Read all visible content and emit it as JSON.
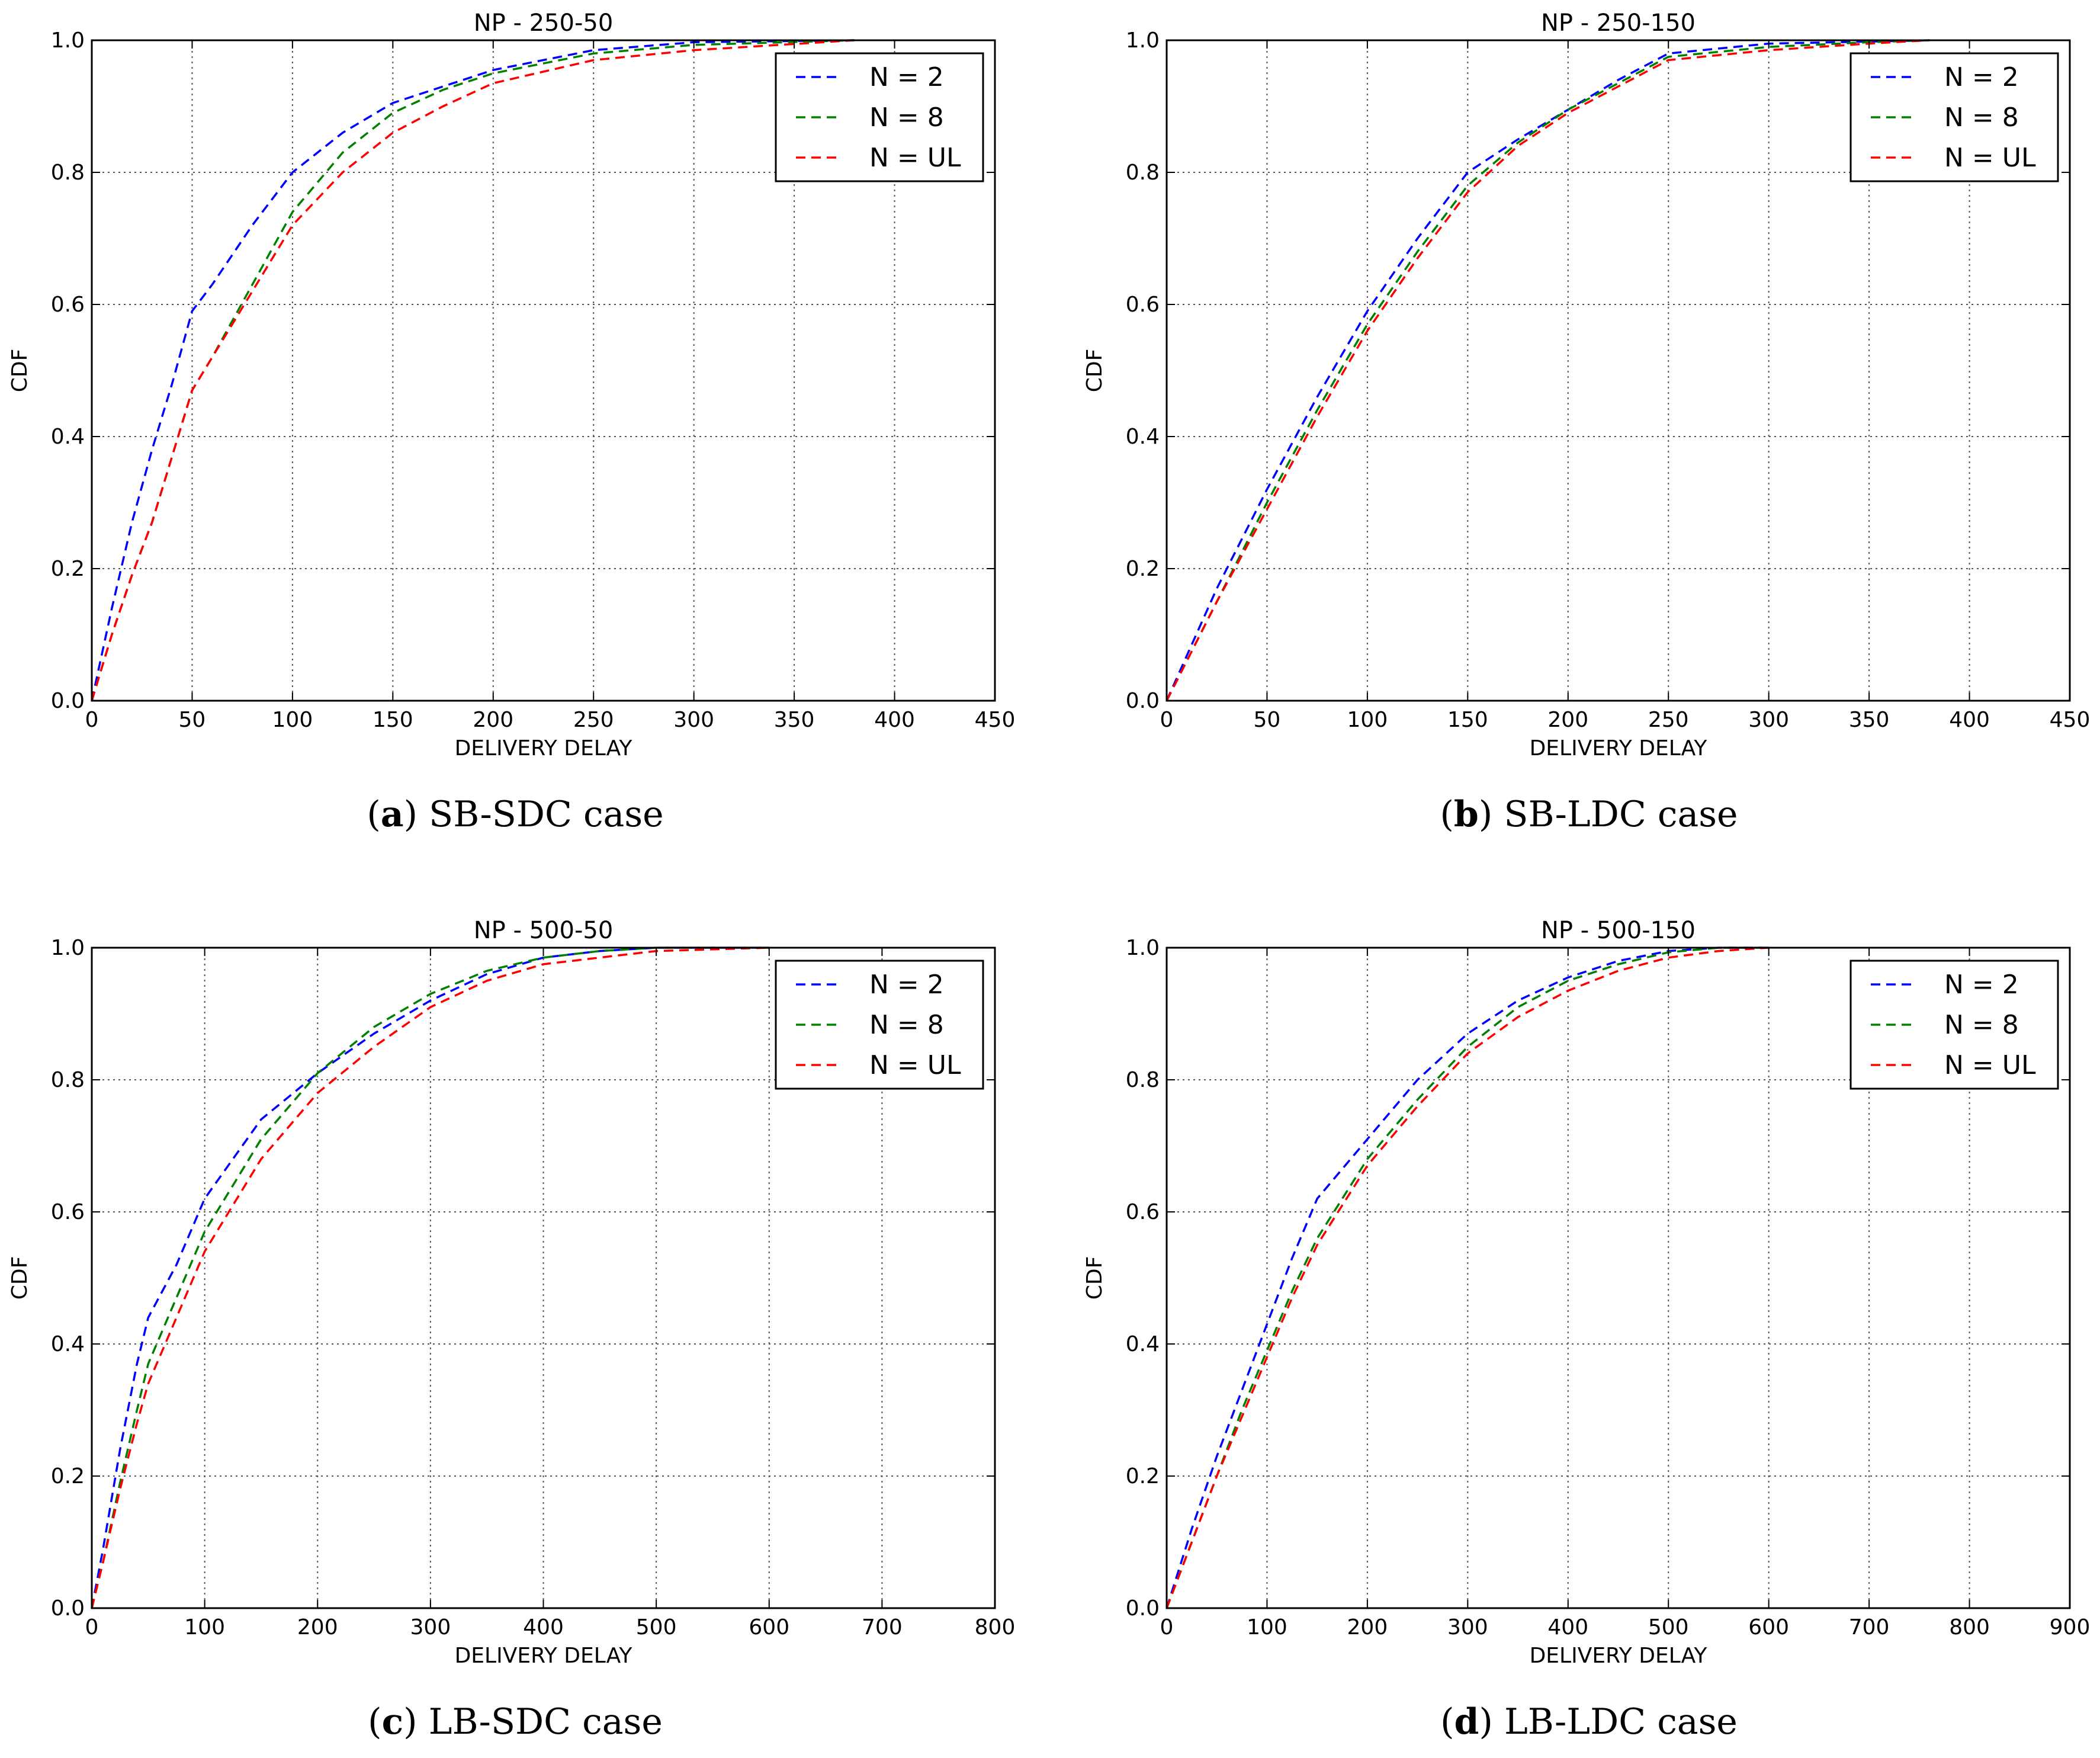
{
  "figure": {
    "captions": [
      {
        "letter": "a",
        "paren_open": "(",
        "paren_close": ")",
        "text": " SB-SDC case"
      },
      {
        "letter": "b",
        "paren_open": "(",
        "paren_close": ")",
        "text": " SB-LDC case"
      },
      {
        "letter": "c",
        "paren_open": "(",
        "paren_close": ")",
        "text": " LB-SDC case"
      },
      {
        "letter": "d",
        "paren_open": "(",
        "paren_close": ")",
        "text": " LB-LDC case"
      }
    ]
  },
  "colors": {
    "n2": "#0000ff",
    "n8": "#008000",
    "nul": "#ff0000",
    "grid": "#555555"
  },
  "chart_data": [
    {
      "type": "line",
      "title": "NP - 250-50",
      "xlabel": "DELIVERY DELAY",
      "ylabel": "CDF",
      "xlim": [
        0,
        450
      ],
      "ylim": [
        0,
        1.0
      ],
      "xticks": [
        0,
        50,
        100,
        150,
        200,
        250,
        300,
        350,
        400,
        450
      ],
      "xtick_labels": [
        "0",
        "50",
        "100",
        "150",
        "200",
        "250",
        "300",
        "350",
        "400",
        "450"
      ],
      "yticks": [
        0.0,
        0.2,
        0.4,
        0.6,
        0.8,
        1.0
      ],
      "ytick_labels": [
        "0.0",
        "0.2",
        "0.4",
        "0.6",
        "0.8",
        "1.0"
      ],
      "grid": true,
      "legend_position": "top-right",
      "series": [
        {
          "name": "N = 2",
          "color": "#0000ff",
          "x": [
            0,
            5,
            10,
            20,
            30,
            40,
            50,
            60,
            80,
            100,
            125,
            150,
            175,
            200,
            250,
            300,
            380
          ],
          "y": [
            0,
            0.07,
            0.14,
            0.27,
            0.38,
            0.48,
            0.59,
            0.63,
            0.72,
            0.8,
            0.86,
            0.905,
            0.93,
            0.955,
            0.985,
            0.997,
            1.0
          ]
        },
        {
          "name": "N = 8",
          "color": "#008000",
          "x": [
            0,
            5,
            10,
            20,
            30,
            40,
            50,
            60,
            80,
            100,
            125,
            150,
            175,
            200,
            250,
            300,
            380
          ],
          "y": [
            0,
            0.05,
            0.1,
            0.19,
            0.27,
            0.37,
            0.47,
            0.52,
            0.63,
            0.74,
            0.83,
            0.89,
            0.925,
            0.95,
            0.98,
            0.993,
            1.0
          ]
        },
        {
          "name": "N = UL",
          "color": "#ff0000",
          "x": [
            0,
            5,
            10,
            20,
            30,
            40,
            50,
            60,
            80,
            100,
            125,
            150,
            175,
            200,
            250,
            300,
            380
          ],
          "y": [
            0,
            0.05,
            0.1,
            0.19,
            0.27,
            0.37,
            0.47,
            0.52,
            0.62,
            0.72,
            0.8,
            0.86,
            0.9,
            0.935,
            0.97,
            0.985,
            1.0
          ]
        }
      ]
    },
    {
      "type": "line",
      "title": "NP - 250-150",
      "xlabel": "DELIVERY DELAY",
      "ylabel": "CDF",
      "xlim": [
        0,
        450
      ],
      "ylim": [
        0,
        1.0
      ],
      "xticks": [
        0,
        50,
        100,
        150,
        200,
        250,
        300,
        350,
        400,
        450
      ],
      "xtick_labels": [
        "0",
        "50",
        "100",
        "150",
        "200",
        "250",
        "300",
        "350",
        "400",
        "450"
      ],
      "yticks": [
        0.0,
        0.2,
        0.4,
        0.6,
        0.8,
        1.0
      ],
      "ytick_labels": [
        "0.0",
        "0.2",
        "0.4",
        "0.6",
        "0.8",
        "1.0"
      ],
      "grid": true,
      "legend_position": "top-right",
      "series": [
        {
          "name": "N = 2",
          "color": "#0000ff",
          "x": [
            0,
            25,
            50,
            75,
            100,
            125,
            150,
            175,
            200,
            225,
            250,
            300,
            350,
            380
          ],
          "y": [
            0,
            0.17,
            0.32,
            0.46,
            0.59,
            0.7,
            0.8,
            0.85,
            0.895,
            0.94,
            0.98,
            0.995,
            0.998,
            1.0
          ]
        },
        {
          "name": "N = 8",
          "color": "#008000",
          "x": [
            0,
            25,
            50,
            75,
            100,
            125,
            150,
            175,
            200,
            225,
            250,
            300,
            350,
            380
          ],
          "y": [
            0,
            0.15,
            0.3,
            0.44,
            0.57,
            0.68,
            0.78,
            0.845,
            0.895,
            0.935,
            0.975,
            0.99,
            0.997,
            1.0
          ]
        },
        {
          "name": "N = UL",
          "color": "#ff0000",
          "x": [
            0,
            25,
            50,
            75,
            100,
            125,
            150,
            175,
            200,
            225,
            250,
            300,
            350,
            380
          ],
          "y": [
            0,
            0.15,
            0.29,
            0.43,
            0.56,
            0.67,
            0.77,
            0.84,
            0.89,
            0.93,
            0.97,
            0.985,
            0.995,
            1.0
          ]
        }
      ]
    },
    {
      "type": "line",
      "title": "NP - 500-50",
      "xlabel": "DELIVERY DELAY",
      "ylabel": "CDF",
      "xlim": [
        0,
        800
      ],
      "ylim": [
        0,
        1.0
      ],
      "xticks": [
        0,
        100,
        200,
        300,
        400,
        500,
        600,
        700,
        800
      ],
      "xtick_labels": [
        "0",
        "100",
        "200",
        "300",
        "400",
        "500",
        "600",
        "700",
        "800"
      ],
      "yticks": [
        0.0,
        0.2,
        0.4,
        0.6,
        0.8,
        1.0
      ],
      "ytick_labels": [
        "0.0",
        "0.2",
        "0.4",
        "0.6",
        "0.8",
        "1.0"
      ],
      "grid": true,
      "legend_position": "top-right",
      "series": [
        {
          "name": "N = 2",
          "color": "#0000ff",
          "x": [
            0,
            10,
            25,
            40,
            50,
            75,
            100,
            150,
            200,
            250,
            300,
            350,
            400,
            450,
            500,
            600
          ],
          "y": [
            0,
            0.09,
            0.24,
            0.37,
            0.44,
            0.52,
            0.62,
            0.74,
            0.81,
            0.87,
            0.92,
            0.96,
            0.985,
            0.995,
            1.0,
            1.0
          ]
        },
        {
          "name": "N = 8",
          "color": "#008000",
          "x": [
            0,
            10,
            25,
            40,
            50,
            75,
            100,
            150,
            200,
            250,
            300,
            350,
            400,
            450,
            500,
            600
          ],
          "y": [
            0,
            0.07,
            0.19,
            0.3,
            0.37,
            0.47,
            0.57,
            0.71,
            0.81,
            0.88,
            0.93,
            0.965,
            0.985,
            0.995,
            1.0,
            1.0
          ]
        },
        {
          "name": "N = UL",
          "color": "#ff0000",
          "x": [
            0,
            10,
            25,
            40,
            50,
            75,
            100,
            150,
            200,
            250,
            300,
            350,
            400,
            450,
            500,
            600
          ],
          "y": [
            0,
            0.07,
            0.18,
            0.28,
            0.34,
            0.44,
            0.54,
            0.68,
            0.78,
            0.85,
            0.91,
            0.95,
            0.975,
            0.985,
            0.995,
            1.0
          ]
        }
      ]
    },
    {
      "type": "line",
      "title": "NP - 500-150",
      "xlabel": "DELIVERY DELAY",
      "ylabel": "CDF",
      "xlim": [
        0,
        900
      ],
      "ylim": [
        0,
        1.0
      ],
      "xticks": [
        0,
        100,
        200,
        300,
        400,
        500,
        600,
        700,
        800,
        900
      ],
      "xtick_labels": [
        "0",
        "100",
        "200",
        "300",
        "400",
        "500",
        "600",
        "700",
        "800",
        "900"
      ],
      "yticks": [
        0.0,
        0.2,
        0.4,
        0.6,
        0.8,
        1.0
      ],
      "ytick_labels": [
        "0.0",
        "0.2",
        "0.4",
        "0.6",
        "0.8",
        "1.0"
      ],
      "grid": true,
      "legend_position": "top-right",
      "series": [
        {
          "name": "N = 2",
          "color": "#0000ff",
          "x": [
            0,
            25,
            50,
            75,
            100,
            125,
            150,
            200,
            250,
            300,
            350,
            400,
            450,
            500,
            550,
            600
          ],
          "y": [
            0,
            0.12,
            0.23,
            0.33,
            0.43,
            0.53,
            0.62,
            0.71,
            0.8,
            0.87,
            0.92,
            0.955,
            0.98,
            0.995,
            1.0,
            1.0
          ]
        },
        {
          "name": "N = 8",
          "color": "#008000",
          "x": [
            0,
            25,
            50,
            75,
            100,
            125,
            150,
            200,
            250,
            300,
            350,
            400,
            450,
            500,
            550,
            600
          ],
          "y": [
            0,
            0.1,
            0.2,
            0.3,
            0.39,
            0.48,
            0.56,
            0.68,
            0.77,
            0.85,
            0.91,
            0.95,
            0.975,
            0.993,
            1.0,
            1.0
          ]
        },
        {
          "name": "N = UL",
          "color": "#ff0000",
          "x": [
            0,
            25,
            50,
            75,
            100,
            125,
            150,
            200,
            250,
            300,
            350,
            400,
            450,
            500,
            550,
            600
          ],
          "y": [
            0,
            0.1,
            0.2,
            0.29,
            0.38,
            0.47,
            0.55,
            0.67,
            0.76,
            0.84,
            0.895,
            0.935,
            0.965,
            0.985,
            0.995,
            1.0
          ]
        }
      ]
    }
  ]
}
